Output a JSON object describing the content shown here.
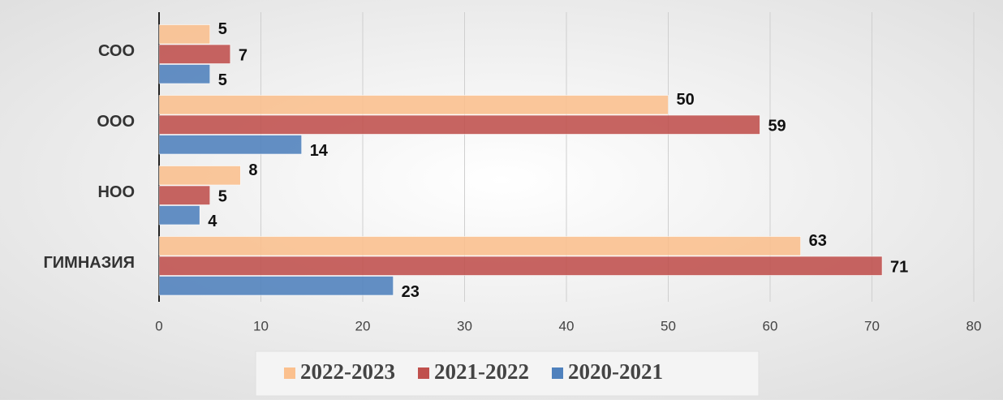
{
  "chart_data": {
    "type": "bar",
    "orientation": "horizontal",
    "categories": [
      "ГИМНАЗИЯ",
      "НОО",
      "ООО",
      "СОО"
    ],
    "series": [
      {
        "name": "2022-2023",
        "color": "#fbc08e",
        "values": [
          63,
          8,
          50,
          5
        ]
      },
      {
        "name": "2021-2022",
        "color": "#c0504d",
        "values": [
          71,
          5,
          59,
          7
        ]
      },
      {
        "name": "2020-2021",
        "color": "#4f81bd",
        "values": [
          23,
          4,
          14,
          5
        ]
      }
    ],
    "xlim": [
      0,
      80
    ],
    "xticks": [
      0,
      10,
      20,
      30,
      40,
      50,
      60,
      70,
      80
    ],
    "grid": true,
    "legend": "bottom"
  }
}
